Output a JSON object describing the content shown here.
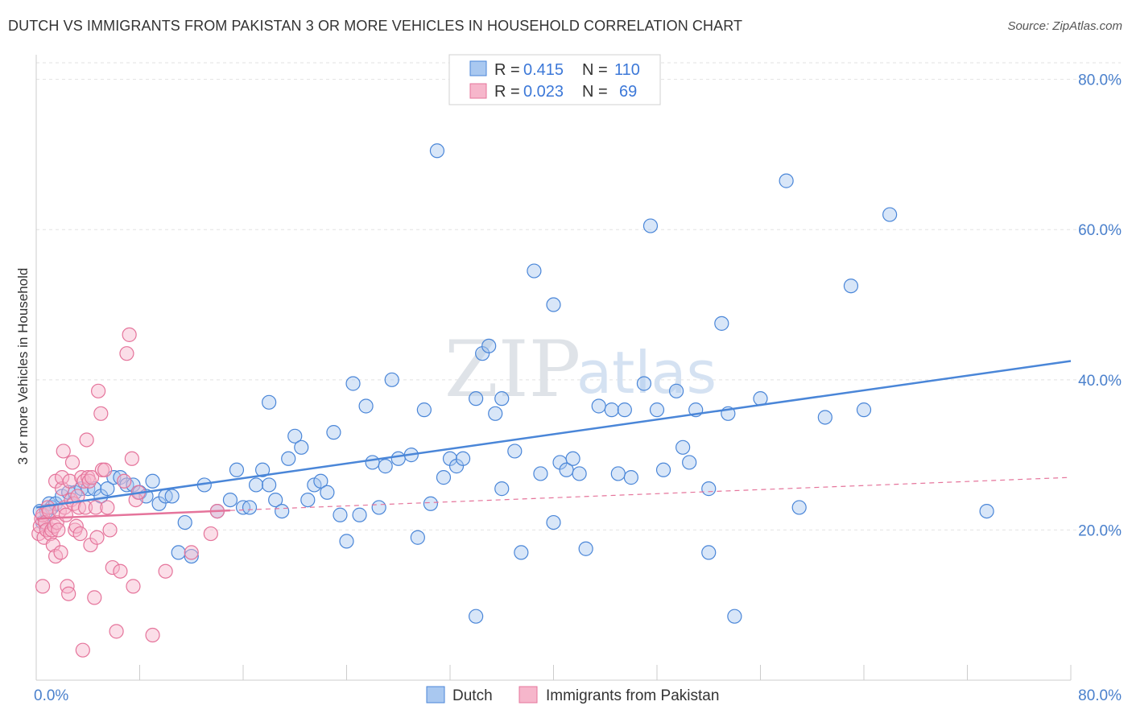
{
  "title": "DUTCH VS IMMIGRANTS FROM PAKISTAN 3 OR MORE VEHICLES IN HOUSEHOLD CORRELATION CHART",
  "source": "Source: ZipAtlas.com",
  "watermark": {
    "zip": "ZIP",
    "atlas": "atlas"
  },
  "legend": {
    "r_label": "R =",
    "n_label": "N =",
    "rows": [
      {
        "r": "0.415",
        "n": "110"
      },
      {
        "r": "0.023",
        "n": "69"
      }
    ]
  },
  "chart_data": {
    "type": "scatter",
    "title": "DUTCH VS IMMIGRANTS FROM PAKISTAN 3 OR MORE VEHICLES IN HOUSEHOLD CORRELATION CHART",
    "xlabel": "",
    "ylabel": "3 or more Vehicles in Household",
    "xlim": [
      0,
      80
    ],
    "ylim": [
      0,
      82
    ],
    "x_tick_labels": [
      "0.0%",
      "80.0%"
    ],
    "y_tick_labels": [
      "20.0%",
      "40.0%",
      "60.0%",
      "80.0%"
    ],
    "y_ticks": [
      20,
      40,
      60,
      80
    ],
    "grid": true,
    "legend_position": "top-center",
    "colors": {
      "dutch": "#4a86d8",
      "pakistan": "#e5749b",
      "dutch_fill": "#a9c8f0",
      "pakistan_fill": "#f6b6cb"
    },
    "series": [
      {
        "name": "Dutch",
        "r": 0.415,
        "n": 110,
        "trend": {
          "x": [
            0,
            80
          ],
          "y": [
            23.0,
            42.5
          ],
          "style": "solid"
        },
        "points": [
          [
            0.3,
            22.5
          ],
          [
            0.5,
            21.0
          ],
          [
            0.8,
            22.5
          ],
          [
            1.0,
            23.5
          ],
          [
            1.2,
            23.0
          ],
          [
            1.5,
            23.5
          ],
          [
            2.0,
            24.5
          ],
          [
            2.5,
            25.0
          ],
          [
            3.0,
            25.0
          ],
          [
            3.5,
            25.5
          ],
          [
            4.0,
            25.5
          ],
          [
            4.5,
            25.5
          ],
          [
            5.0,
            24.5
          ],
          [
            5.5,
            25.5
          ],
          [
            6.0,
            27.0
          ],
          [
            6.5,
            27.0
          ],
          [
            7.0,
            26.0
          ],
          [
            7.5,
            26.0
          ],
          [
            8.0,
            25.0
          ],
          [
            8.5,
            24.5
          ],
          [
            9.0,
            26.5
          ],
          [
            9.5,
            23.5
          ],
          [
            10.0,
            24.5
          ],
          [
            10.5,
            24.5
          ],
          [
            11.0,
            17.0
          ],
          [
            11.5,
            21.0
          ],
          [
            12.0,
            16.5
          ],
          [
            13.0,
            26.0
          ],
          [
            14.0,
            22.5
          ],
          [
            15.0,
            24.0
          ],
          [
            15.5,
            28.0
          ],
          [
            16.0,
            23.0
          ],
          [
            16.5,
            23.0
          ],
          [
            17.0,
            26.0
          ],
          [
            17.5,
            28.0
          ],
          [
            18.0,
            26.0
          ],
          [
            18.0,
            37.0
          ],
          [
            18.5,
            24.0
          ],
          [
            19.0,
            22.5
          ],
          [
            19.5,
            29.5
          ],
          [
            20.0,
            32.5
          ],
          [
            20.5,
            31.0
          ],
          [
            21.0,
            24.0
          ],
          [
            21.5,
            26.0
          ],
          [
            22.0,
            26.5
          ],
          [
            22.5,
            25.0
          ],
          [
            23.0,
            33.0
          ],
          [
            23.5,
            22.0
          ],
          [
            24.0,
            18.5
          ],
          [
            24.5,
            39.5
          ],
          [
            25.0,
            22.0
          ],
          [
            25.5,
            36.5
          ],
          [
            26.0,
            29.0
          ],
          [
            26.5,
            23.0
          ],
          [
            27.0,
            28.5
          ],
          [
            27.5,
            40.0
          ],
          [
            28.0,
            29.5
          ],
          [
            29.0,
            30.0
          ],
          [
            29.5,
            19.0
          ],
          [
            30.0,
            36.0
          ],
          [
            30.5,
            23.5
          ],
          [
            31.0,
            70.5
          ],
          [
            31.5,
            27.0
          ],
          [
            32.0,
            29.5
          ],
          [
            32.5,
            28.5
          ],
          [
            33.0,
            29.5
          ],
          [
            34.0,
            8.5
          ],
          [
            34.0,
            37.5
          ],
          [
            34.5,
            43.5
          ],
          [
            35.0,
            44.5
          ],
          [
            35.5,
            35.5
          ],
          [
            36.0,
            25.5
          ],
          [
            36.0,
            37.5
          ],
          [
            37.0,
            30.5
          ],
          [
            37.5,
            17.0
          ],
          [
            38.5,
            54.5
          ],
          [
            39.0,
            27.5
          ],
          [
            40.0,
            50.0
          ],
          [
            40.0,
            21.0
          ],
          [
            40.5,
            29.0
          ],
          [
            41.0,
            28.0
          ],
          [
            41.5,
            29.5
          ],
          [
            42.0,
            27.5
          ],
          [
            42.5,
            17.5
          ],
          [
            43.5,
            36.5
          ],
          [
            44.5,
            36.0
          ],
          [
            45.0,
            27.5
          ],
          [
            45.5,
            36.0
          ],
          [
            46.0,
            27.0
          ],
          [
            47.0,
            39.5
          ],
          [
            47.5,
            60.5
          ],
          [
            48.0,
            36.0
          ],
          [
            48.5,
            28.0
          ],
          [
            49.5,
            38.5
          ],
          [
            50.0,
            31.0
          ],
          [
            50.5,
            29.0
          ],
          [
            51.0,
            36.0
          ],
          [
            52.0,
            17.0
          ],
          [
            52.0,
            25.5
          ],
          [
            53.0,
            47.5
          ],
          [
            53.5,
            35.5
          ],
          [
            54.0,
            8.5
          ],
          [
            56.0,
            37.5
          ],
          [
            58.0,
            66.5
          ],
          [
            59.0,
            23.0
          ],
          [
            61.0,
            35.0
          ],
          [
            63.0,
            52.5
          ],
          [
            64.0,
            36.0
          ],
          [
            66.0,
            62.0
          ],
          [
            73.5,
            22.5
          ]
        ]
      },
      {
        "name": "Immigrants from Pakistan",
        "r": 0.023,
        "n": 69,
        "trend_solid": {
          "x": [
            0,
            15
          ],
          "y": [
            21.5,
            22.6
          ]
        },
        "trend_dashed": {
          "x": [
            15,
            80
          ],
          "y": [
            22.6,
            27.0
          ]
        },
        "points": [
          [
            0.2,
            19.5
          ],
          [
            0.3,
            20.5
          ],
          [
            0.4,
            21.5
          ],
          [
            0.5,
            22.0
          ],
          [
            0.5,
            12.5
          ],
          [
            0.6,
            19.0
          ],
          [
            0.7,
            21.0
          ],
          [
            0.8,
            20.0
          ],
          [
            0.9,
            23.0
          ],
          [
            1.0,
            22.5
          ],
          [
            1.1,
            19.5
          ],
          [
            1.2,
            20.0
          ],
          [
            1.3,
            18.0
          ],
          [
            1.4,
            20.5
          ],
          [
            1.5,
            16.5
          ],
          [
            1.5,
            26.5
          ],
          [
            1.6,
            21.0
          ],
          [
            1.7,
            20.0
          ],
          [
            1.8,
            22.5
          ],
          [
            1.9,
            17.0
          ],
          [
            2.0,
            25.5
          ],
          [
            2.0,
            27.0
          ],
          [
            2.1,
            30.5
          ],
          [
            2.2,
            23.0
          ],
          [
            2.3,
            22.0
          ],
          [
            2.4,
            12.5
          ],
          [
            2.5,
            11.5
          ],
          [
            2.6,
            26.5
          ],
          [
            2.7,
            24.0
          ],
          [
            2.8,
            29.0
          ],
          [
            2.9,
            23.5
          ],
          [
            3.0,
            20.0
          ],
          [
            3.1,
            20.5
          ],
          [
            3.2,
            24.5
          ],
          [
            3.3,
            23.0
          ],
          [
            3.4,
            19.5
          ],
          [
            3.5,
            27.0
          ],
          [
            3.6,
            4.0
          ],
          [
            3.7,
            26.5
          ],
          [
            3.8,
            23.0
          ],
          [
            3.9,
            32.0
          ],
          [
            4.0,
            27.0
          ],
          [
            4.1,
            26.5
          ],
          [
            4.2,
            18.0
          ],
          [
            4.3,
            27.0
          ],
          [
            4.5,
            11.0
          ],
          [
            4.6,
            23.0
          ],
          [
            4.7,
            19.0
          ],
          [
            4.8,
            38.5
          ],
          [
            5.0,
            35.5
          ],
          [
            5.1,
            28.0
          ],
          [
            5.3,
            28.0
          ],
          [
            5.5,
            23.0
          ],
          [
            5.7,
            20.0
          ],
          [
            5.9,
            15.0
          ],
          [
            6.2,
            6.5
          ],
          [
            6.5,
            14.5
          ],
          [
            6.8,
            26.5
          ],
          [
            7.0,
            43.5
          ],
          [
            7.2,
            46.0
          ],
          [
            7.4,
            29.5
          ],
          [
            7.5,
            12.5
          ],
          [
            7.7,
            24.0
          ],
          [
            7.9,
            25.0
          ],
          [
            9.0,
            6.0
          ],
          [
            10.0,
            14.5
          ],
          [
            12.0,
            17.0
          ],
          [
            13.5,
            19.5
          ],
          [
            14.0,
            22.5
          ]
        ]
      }
    ]
  },
  "bottom_legend": {
    "dutch": "Dutch",
    "pakistan": "Immigrants from Pakistan"
  }
}
